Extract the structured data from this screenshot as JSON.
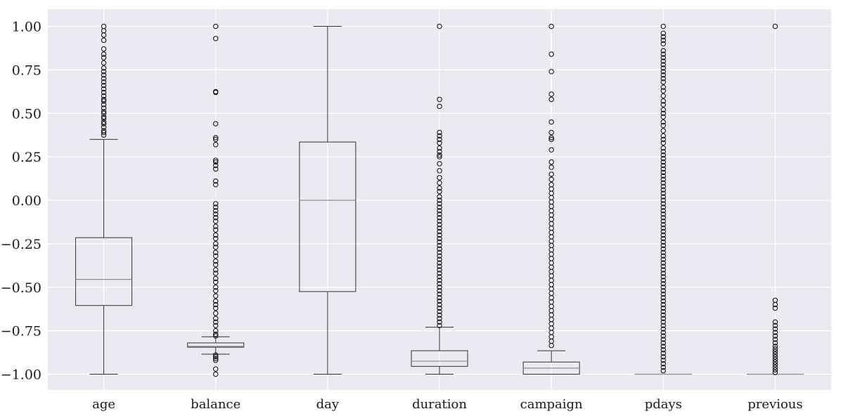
{
  "chart_data": {
    "type": "box",
    "title": "",
    "xlabel": "",
    "ylabel": "",
    "ylim": [
      -1.1,
      1.1
    ],
    "yticks": [
      1.0,
      0.75,
      0.5,
      0.25,
      0.0,
      -0.25,
      -0.5,
      -0.75,
      -1.0
    ],
    "ytick_labels": [
      "1.00",
      "0.75",
      "0.50",
      "0.25",
      "0.00",
      "−0.25",
      "−0.50",
      "−0.75",
      "−1.00"
    ],
    "grid": true,
    "colors": {
      "background": "#eaeaf2",
      "grid": "#ffffff",
      "box": "#333333",
      "median": "#8c8c8c",
      "flier": "#1a1a1a"
    },
    "series": [
      {
        "category": "age",
        "whisker_low": -1.0,
        "q1": -0.605,
        "median": -0.455,
        "q3": -0.215,
        "whisker_high": 0.35,
        "outliers_low": [],
        "outliers_high": [
          0.375,
          0.39,
          0.4,
          0.42,
          0.44,
          0.45,
          0.47,
          0.48,
          0.5,
          0.51,
          0.53,
          0.55,
          0.57,
          0.58,
          0.6,
          0.62,
          0.64,
          0.66,
          0.68,
          0.7,
          0.72,
          0.74,
          0.76,
          0.79,
          0.82,
          0.84,
          0.87,
          0.92,
          0.95,
          0.975,
          1.0
        ]
      },
      {
        "category": "balance",
        "whisker_low": -0.885,
        "q1": -0.845,
        "median": -0.84,
        "q3": -0.82,
        "whisker_high": -0.785,
        "outliers_low": [
          -0.89,
          -0.9,
          -0.91,
          -0.92,
          -0.97,
          -1.0
        ],
        "outliers_high": [
          -0.78,
          -0.77,
          -0.75,
          -0.72,
          -0.7,
          -0.68,
          -0.65,
          -0.62,
          -0.6,
          -0.58,
          -0.55,
          -0.52,
          -0.5,
          -0.47,
          -0.45,
          -0.42,
          -0.4,
          -0.37,
          -0.35,
          -0.32,
          -0.3,
          -0.27,
          -0.25,
          -0.22,
          -0.2,
          -0.17,
          -0.15,
          -0.12,
          -0.1,
          -0.08,
          -0.06,
          -0.04,
          -0.02,
          0.09,
          0.11,
          0.18,
          0.2,
          0.22,
          0.23,
          0.32,
          0.35,
          0.36,
          0.44,
          0.62,
          0.625,
          0.93,
          1.0
        ]
      },
      {
        "category": "day",
        "whisker_low": -1.0,
        "q1": -0.525,
        "median": 0.0,
        "q3": 0.335,
        "whisker_high": 1.0,
        "outliers_low": [],
        "outliers_high": []
      },
      {
        "category": "duration",
        "whisker_low": -1.0,
        "q1": -0.955,
        "median": -0.925,
        "q3": -0.865,
        "whisker_high": -0.73,
        "outliers_low": [],
        "outliers_high": [
          -0.72,
          -0.7,
          -0.68,
          -0.66,
          -0.64,
          -0.62,
          -0.6,
          -0.58,
          -0.56,
          -0.54,
          -0.52,
          -0.5,
          -0.48,
          -0.46,
          -0.44,
          -0.42,
          -0.4,
          -0.38,
          -0.36,
          -0.34,
          -0.32,
          -0.3,
          -0.28,
          -0.26,
          -0.24,
          -0.22,
          -0.2,
          -0.18,
          -0.16,
          -0.14,
          -0.12,
          -0.1,
          -0.08,
          -0.06,
          -0.04,
          -0.02,
          0.0,
          0.02,
          0.05,
          0.07,
          0.1,
          0.13,
          0.17,
          0.21,
          0.25,
          0.26,
          0.28,
          0.3,
          0.33,
          0.35,
          0.37,
          0.39,
          0.54,
          0.58,
          1.0
        ]
      },
      {
        "category": "campaign",
        "whisker_low": -1.0,
        "q1": -1.0,
        "median": -0.965,
        "q3": -0.93,
        "whisker_high": -0.865,
        "outliers_low": [],
        "outliers_high": [
          -0.835,
          -0.81,
          -0.785,
          -0.76,
          -0.735,
          -0.71,
          -0.685,
          -0.66,
          -0.635,
          -0.61,
          -0.585,
          -0.56,
          -0.535,
          -0.51,
          -0.485,
          -0.46,
          -0.435,
          -0.41,
          -0.385,
          -0.36,
          -0.335,
          -0.31,
          -0.285,
          -0.26,
          -0.235,
          -0.21,
          -0.185,
          -0.16,
          -0.135,
          -0.11,
          -0.085,
          -0.06,
          -0.035,
          -0.01,
          0.015,
          0.04,
          0.065,
          0.09,
          0.12,
          0.15,
          0.19,
          0.22,
          0.29,
          0.35,
          0.36,
          0.39,
          0.45,
          0.58,
          0.61,
          0.74,
          0.84,
          1.0
        ]
      },
      {
        "category": "pdays",
        "whisker_low": -1.0,
        "q1": -1.0,
        "median": -1.0,
        "q3": -1.0,
        "whisker_high": -1.0,
        "outliers_low": [],
        "outliers_high": [
          -0.98,
          -0.96,
          -0.94,
          -0.92,
          -0.9,
          -0.88,
          -0.86,
          -0.84,
          -0.82,
          -0.8,
          -0.78,
          -0.76,
          -0.74,
          -0.72,
          -0.7,
          -0.68,
          -0.66,
          -0.64,
          -0.62,
          -0.6,
          -0.58,
          -0.56,
          -0.54,
          -0.52,
          -0.5,
          -0.48,
          -0.46,
          -0.44,
          -0.42,
          -0.4,
          -0.38,
          -0.36,
          -0.34,
          -0.32,
          -0.3,
          -0.28,
          -0.26,
          -0.24,
          -0.22,
          -0.2,
          -0.18,
          -0.16,
          -0.14,
          -0.12,
          -0.1,
          -0.08,
          -0.06,
          -0.04,
          -0.02,
          0.0,
          0.02,
          0.04,
          0.06,
          0.08,
          0.1,
          0.12,
          0.14,
          0.16,
          0.18,
          0.2,
          0.22,
          0.24,
          0.26,
          0.28,
          0.3,
          0.33,
          0.35,
          0.37,
          0.4,
          0.43,
          0.45,
          0.48,
          0.5,
          0.52,
          0.55,
          0.57,
          0.6,
          0.63,
          0.65,
          0.68,
          0.7,
          0.72,
          0.74,
          0.76,
          0.78,
          0.8,
          0.82,
          0.84,
          0.86,
          0.9,
          0.92,
          0.94,
          0.96,
          1.0
        ]
      },
      {
        "category": "previous",
        "whisker_low": -1.0,
        "q1": -1.0,
        "median": -1.0,
        "q3": -1.0,
        "whisker_high": -1.0,
        "outliers_low": [],
        "outliers_high": [
          -0.99,
          -0.975,
          -0.96,
          -0.945,
          -0.93,
          -0.915,
          -0.9,
          -0.885,
          -0.87,
          -0.855,
          -0.84,
          -0.82,
          -0.8,
          -0.78,
          -0.76,
          -0.74,
          -0.72,
          -0.7,
          -0.62,
          -0.6,
          -0.575,
          1.0
        ]
      }
    ]
  }
}
